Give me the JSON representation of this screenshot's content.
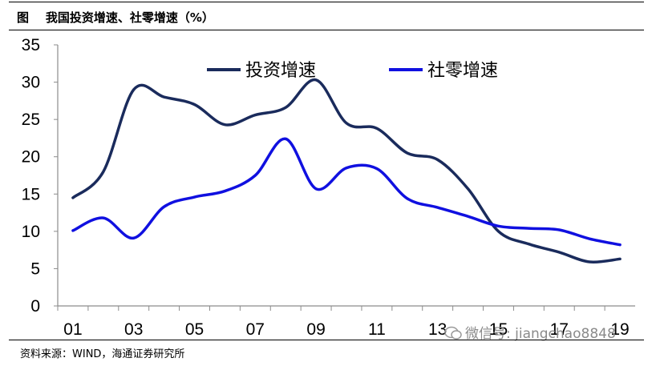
{
  "figure": {
    "caption": "图    我国投资增速、社零增速（%）",
    "source": "资料来源：WIND，海通证券研究所",
    "watermark": "微信号: jiangchao8848"
  },
  "chart_data": {
    "type": "line",
    "title": "",
    "xlabel": "",
    "ylabel": "",
    "ylim": [
      0,
      35
    ],
    "yticks": [
      0,
      5,
      10,
      15,
      20,
      25,
      30,
      35
    ],
    "xlim": [
      2000.5,
      2019.5
    ],
    "xtick_labels": [
      "01",
      "03",
      "05",
      "07",
      "09",
      "11",
      "13",
      "15",
      "17",
      "19"
    ],
    "xtick_values": [
      2001,
      2003,
      2005,
      2007,
      2009,
      2011,
      2013,
      2015,
      2017,
      2019
    ],
    "legend_position": "top-center",
    "grid": false,
    "series": [
      {
        "name": "投资增速",
        "color": "#1a2b5c",
        "x": [
          2001,
          2002,
          2003,
          2004,
          2005,
          2006,
          2007,
          2008,
          2009,
          2010,
          2011,
          2012,
          2013,
          2014,
          2015,
          2016,
          2017,
          2018,
          2019
        ],
        "y": [
          14.5,
          18,
          29,
          28,
          27,
          24.3,
          25.6,
          26.6,
          30.3,
          24.5,
          23.8,
          20.5,
          19.6,
          15.7,
          10,
          8.3,
          7.2,
          5.9,
          6.3
        ]
      },
      {
        "name": "社零增速",
        "color": "#1010e0",
        "x": [
          2001,
          2002,
          2003,
          2004,
          2005,
          2006,
          2007,
          2008,
          2009,
          2010,
          2011,
          2012,
          2013,
          2014,
          2015,
          2016,
          2017,
          2018,
          2019
        ],
        "y": [
          10.1,
          11.8,
          9.1,
          13.3,
          14.6,
          15.4,
          17.5,
          22.4,
          15.7,
          18.5,
          18.4,
          14.4,
          13.2,
          12,
          10.7,
          10.4,
          10.2,
          9,
          8.2
        ]
      }
    ]
  }
}
